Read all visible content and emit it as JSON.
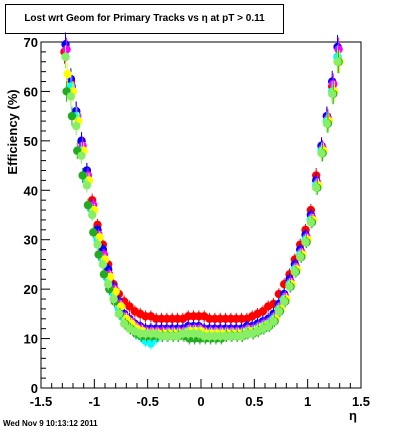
{
  "chart_data": {
    "type": "scatter",
    "title": "Lost wrt Geom for Primary Tracks vs    η at pT > 0.11",
    "xlabel": "η",
    "ylabel": "Efficiency (%)",
    "xlim": [
      -1.5,
      1.5
    ],
    "ylim": [
      0,
      70
    ],
    "x_ticks": [
      "-1.5",
      "-1",
      "-0.5",
      "0",
      "0.5",
      "1",
      "1.5"
    ],
    "y_ticks": [
      "0",
      "10",
      "20",
      "30",
      "40",
      "50",
      "60",
      "70"
    ],
    "grid": false,
    "legend": "none",
    "series": [
      {
        "color": "#ff0000",
        "x": [
          -1.28,
          -1.22,
          -1.17,
          -1.12,
          -1.07,
          -1.02,
          -0.97,
          -0.92,
          -0.87,
          -0.82,
          -0.77,
          -0.72,
          -0.67,
          -0.62,
          -0.57,
          -0.52,
          -0.47,
          -0.42,
          -0.37,
          -0.32,
          -0.27,
          -0.22,
          -0.17,
          -0.12,
          -0.07,
          -0.02,
          0.03,
          0.08,
          0.13,
          0.18,
          0.23,
          0.28,
          0.33,
          0.38,
          0.43,
          0.48,
          0.53,
          0.58,
          0.63,
          0.68,
          0.73,
          0.78,
          0.83,
          0.88,
          0.93,
          0.98,
          1.03,
          1.08,
          1.13,
          1.18,
          1.23,
          1.28
        ],
        "y": [
          68,
          62,
          56,
          50,
          44,
          38,
          33,
          29,
          25,
          21,
          19,
          17.5,
          16.5,
          15.5,
          15,
          14.5,
          14.5,
          14,
          14,
          14,
          14,
          14,
          14,
          14.5,
          14.5,
          14.5,
          14.5,
          14,
          14,
          14,
          14,
          14,
          14,
          14,
          14,
          14.5,
          15,
          15.5,
          16.5,
          17,
          19,
          21,
          23,
          26,
          29,
          32,
          36,
          43,
          49,
          55,
          61,
          67
        ]
      },
      {
        "color": "#0000ff",
        "x": [
          -1.27,
          -1.22,
          -1.17,
          -1.12,
          -1.07,
          -1.02,
          -0.97,
          -0.92,
          -0.87,
          -0.82,
          -0.77,
          -0.72,
          -0.67,
          -0.62,
          -0.57,
          -0.52,
          -0.47,
          -0.42,
          -0.37,
          -0.32,
          -0.27,
          -0.22,
          -0.17,
          -0.12,
          -0.07,
          -0.02,
          0.03,
          0.08,
          0.13,
          0.18,
          0.23,
          0.28,
          0.33,
          0.38,
          0.43,
          0.48,
          0.53,
          0.58,
          0.63,
          0.68,
          0.73,
          0.78,
          0.83,
          0.88,
          0.93,
          0.98,
          1.03,
          1.08,
          1.13,
          1.18,
          1.23,
          1.28
        ],
        "y": [
          69.5,
          62.5,
          56,
          50,
          44,
          37,
          32,
          28,
          24,
          20.5,
          17.5,
          15,
          14,
          13,
          12.5,
          12,
          12,
          12,
          12,
          12,
          12,
          12,
          12,
          12.5,
          12.5,
          12.5,
          12,
          12,
          12,
          12,
          12,
          12,
          12,
          12,
          12.5,
          12.5,
          13,
          13.5,
          14,
          15,
          17,
          19,
          22,
          25,
          28,
          31,
          35,
          42,
          49,
          55,
          62,
          69
        ]
      },
      {
        "color": "#ff00ff",
        "x": [
          -1.26,
          -1.21,
          -1.16,
          -1.11,
          -1.06,
          -1.01,
          -0.96,
          -0.91,
          -0.86,
          -0.81,
          -0.76,
          -0.71,
          -0.66,
          -0.61,
          -0.56,
          -0.51,
          -0.46,
          -0.41,
          -0.36,
          -0.31,
          -0.26,
          -0.21,
          -0.16,
          -0.11,
          -0.06,
          -0.01,
          0.04,
          0.09,
          0.14,
          0.19,
          0.24,
          0.29,
          0.34,
          0.39,
          0.44,
          0.49,
          0.54,
          0.59,
          0.64,
          0.69,
          0.74,
          0.79,
          0.84,
          0.89,
          0.94,
          0.99,
          1.04,
          1.09,
          1.14,
          1.19,
          1.24,
          1.29
        ],
        "y": [
          68.5,
          61,
          55,
          49,
          43,
          37,
          31,
          27,
          23,
          20,
          17,
          14.5,
          13.5,
          12.5,
          12,
          11.5,
          11.5,
          11.5,
          11.5,
          11.5,
          11.5,
          11.5,
          11.5,
          12,
          12,
          12,
          11.5,
          11.5,
          11.5,
          11.5,
          11.5,
          11.5,
          11.5,
          11.5,
          12,
          12,
          12.5,
          13,
          13.5,
          14.5,
          16.5,
          18.5,
          21.5,
          24.5,
          27.5,
          30.5,
          34.5,
          41.5,
          48.5,
          54.5,
          61.5,
          68.5
        ]
      },
      {
        "color": "#00ffff",
        "x": [
          -1.27,
          -1.22,
          -1.17,
          -1.12,
          -1.07,
          -1.02,
          -0.97,
          -0.92,
          -0.87,
          -0.82,
          -0.77,
          -0.72,
          -0.67,
          -0.62,
          -0.57,
          -0.52,
          -0.47,
          -0.42,
          -0.37,
          -0.32,
          -0.27,
          -0.22,
          -0.17,
          -0.12,
          -0.07,
          -0.02,
          0.03,
          0.08,
          0.13,
          0.18,
          0.23,
          0.28,
          0.33,
          0.38,
          0.43,
          0.48,
          0.53,
          0.58,
          0.63,
          0.68,
          0.73,
          0.78,
          0.83,
          0.88,
          0.93,
          0.98,
          1.03,
          1.08,
          1.13,
          1.18,
          1.23,
          1.28
        ],
        "y": [
          67,
          61,
          55,
          48,
          42,
          36,
          30,
          26,
          22,
          19,
          16,
          14,
          12.5,
          11.5,
          10.5,
          9.5,
          9,
          10,
          10.5,
          11,
          11,
          11,
          11,
          11.5,
          11.5,
          11.5,
          11,
          11,
          11,
          11,
          11,
          11,
          11,
          11,
          11.5,
          11.5,
          12,
          12.5,
          13,
          14,
          16,
          18,
          21,
          24,
          27,
          30,
          34,
          41,
          48,
          54,
          60,
          67
        ]
      },
      {
        "color": "#ffff00",
        "x": [
          -1.25,
          -1.2,
          -1.15,
          -1.1,
          -1.05,
          -1.0,
          -0.95,
          -0.9,
          -0.85,
          -0.8,
          -0.75,
          -0.7,
          -0.65,
          -0.6,
          -0.55,
          -0.5,
          -0.45,
          -0.4,
          -0.35,
          -0.3,
          -0.25,
          -0.2,
          -0.15,
          -0.1,
          -0.05,
          0.0,
          0.05,
          0.1,
          0.15,
          0.2,
          0.25,
          0.3,
          0.35,
          0.4,
          0.45,
          0.5,
          0.55,
          0.6,
          0.65,
          0.7,
          0.75,
          0.8,
          0.85,
          0.9,
          0.95,
          1.0,
          1.05,
          1.1,
          1.15,
          1.2,
          1.25,
          1.3
        ],
        "y": [
          63.5,
          60,
          54,
          48,
          42,
          36,
          30.5,
          26,
          22.5,
          19.5,
          16.5,
          14,
          13,
          12,
          11.5,
          11,
          11,
          11,
          11,
          11,
          11,
          11,
          11,
          11.5,
          11.5,
          11.5,
          11,
          11,
          11,
          11,
          11,
          11,
          11,
          11,
          11.5,
          11.5,
          12,
          12.5,
          13,
          14,
          16,
          18,
          21,
          24,
          27,
          30,
          34,
          41,
          48,
          54,
          60,
          66
        ]
      },
      {
        "color": "#22aa22",
        "x": [
          -1.26,
          -1.21,
          -1.16,
          -1.11,
          -1.06,
          -1.01,
          -0.96,
          -0.91,
          -0.86,
          -0.81,
          -0.76,
          -0.71,
          -0.66,
          -0.61,
          -0.56,
          -0.51,
          -0.46,
          -0.41,
          -0.36,
          -0.31,
          -0.26,
          -0.21,
          -0.16,
          -0.11,
          -0.06,
          -0.01,
          0.04,
          0.09,
          0.14,
          0.19,
          0.24,
          0.29,
          0.34,
          0.39,
          0.44,
          0.49,
          0.54,
          0.59,
          0.64,
          0.69,
          0.74,
          0.79,
          0.84,
          0.89,
          0.94,
          0.99,
          1.04,
          1.09,
          1.14,
          1.19,
          1.24,
          1.29
        ],
        "y": [
          60,
          55,
          48,
          43,
          37,
          31.5,
          27,
          23,
          20,
          17.5,
          15,
          13,
          12,
          11,
          10.5,
          10.5,
          10.5,
          10.5,
          10.5,
          10.5,
          10.5,
          10.5,
          10.5,
          10,
          10,
          10,
          10,
          10,
          10,
          10,
          10.5,
          10.5,
          10.5,
          10.5,
          11,
          11,
          11.5,
          12,
          12.5,
          13.5,
          15.5,
          17.5,
          20.5,
          23.5,
          26.5,
          29.5,
          33.5,
          40.5,
          47.5,
          53.5,
          59.5,
          66
        ]
      },
      {
        "color": "#88ee66",
        "x": [
          -1.27,
          -1.22,
          -1.17,
          -1.12,
          -1.07,
          -1.02,
          -0.97,
          -0.92,
          -0.87,
          -0.82,
          -0.77,
          -0.72,
          -0.67,
          -0.62,
          -0.57,
          -0.52,
          -0.47,
          -0.42,
          -0.37,
          -0.32,
          -0.27,
          -0.22,
          -0.17,
          -0.12,
          -0.07,
          -0.02,
          0.03,
          0.08,
          0.13,
          0.18,
          0.23,
          0.28,
          0.33,
          0.38,
          0.43,
          0.48,
          0.53,
          0.58,
          0.63,
          0.68,
          0.73,
          0.78,
          0.83,
          0.88,
          0.93,
          0.98,
          1.03,
          1.08,
          1.13,
          1.18,
          1.23,
          1.28
        ],
        "y": [
          67,
          59,
          53,
          47,
          41,
          35,
          29,
          25,
          21,
          18,
          15,
          13,
          12,
          11.5,
          11,
          11,
          11,
          11,
          10.5,
          10.5,
          10.5,
          10.5,
          11,
          11,
          11,
          11,
          10.5,
          10.5,
          10.5,
          10.5,
          10.5,
          10.5,
          10.5,
          10.5,
          11,
          11,
          11.5,
          12,
          12.5,
          13.5,
          15.5,
          17.5,
          20.5,
          23.5,
          26.5,
          29.5,
          33.5,
          40.5,
          47.5,
          53.5,
          59.5,
          66
        ]
      }
    ]
  },
  "footer": {
    "timestamp": "Wed Nov  9 10:13:12 2011"
  }
}
